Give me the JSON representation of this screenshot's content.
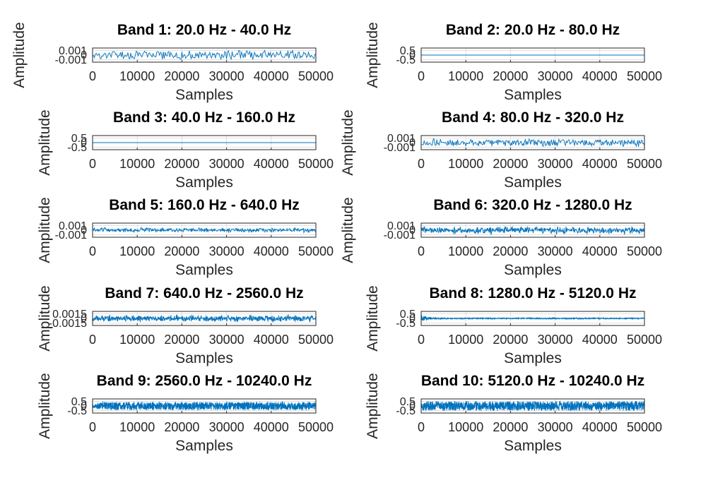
{
  "chart_data": [
    {
      "type": "line",
      "title": "Band 1: 20.0 Hz - 40.0 Hz",
      "xlabel": "Samples",
      "ylabel": "Amplitude",
      "xlim": [
        0,
        50000
      ],
      "xticks": [
        "0",
        "10000",
        "20000",
        "30000",
        "40000",
        "50000"
      ],
      "yticks": [
        "0.001",
        "0",
        "-0.001"
      ],
      "grid": true,
      "signal": {
        "amplitude": 0.7,
        "envelope": "flat",
        "density": 240,
        "variation": 0.35
      }
    },
    {
      "type": "line",
      "title": "Band 2: 20.0 Hz - 80.0 Hz",
      "xlabel": "Samples",
      "ylabel": "Amplitude",
      "xlim": [
        0,
        50000
      ],
      "xticks": [
        "0",
        "10000",
        "20000",
        "30000",
        "40000",
        "50000"
      ],
      "yticks": [
        "0.5",
        "0",
        "-0.5"
      ],
      "grid": true,
      "signal": {
        "amplitude": 0.0,
        "envelope": "flat",
        "density": 10,
        "variation": 0
      }
    },
    {
      "type": "line",
      "title": "Band 3: 40.0 Hz - 160.0 Hz",
      "xlabel": "Samples",
      "ylabel": "Amplitude",
      "xlim": [
        0,
        50000
      ],
      "xticks": [
        "0",
        "10000",
        "20000",
        "30000",
        "40000",
        "50000"
      ],
      "yticks": [
        "0.5",
        "0",
        "-0.5"
      ],
      "grid": true,
      "signal": {
        "amplitude": 0.0,
        "envelope": "flat",
        "density": 10,
        "variation": 0
      }
    },
    {
      "type": "line",
      "title": "Band 4: 80.0 Hz - 320.0 Hz",
      "xlabel": "Samples",
      "ylabel": "Amplitude",
      "xlim": [
        0,
        50000
      ],
      "xticks": [
        "0",
        "10000",
        "20000",
        "30000",
        "40000",
        "50000"
      ],
      "yticks": [
        "0.001",
        "0",
        "-0.001"
      ],
      "grid": true,
      "signal": {
        "amplitude": 0.6,
        "envelope": "flat",
        "density": 300,
        "variation": 0.4
      }
    },
    {
      "type": "line",
      "title": "Band 5: 160.0 Hz - 640.0 Hz",
      "xlabel": "Samples",
      "ylabel": "Amplitude",
      "xlim": [
        0,
        50000
      ],
      "xticks": [
        "0",
        "10000",
        "20000",
        "30000",
        "40000",
        "50000"
      ],
      "yticks": [
        "0.001",
        "0",
        "-0.001"
      ],
      "grid": true,
      "signal": {
        "amplitude": 0.45,
        "envelope": "bursty",
        "density": 520,
        "variation": 0.5
      }
    },
    {
      "type": "line",
      "title": "Band 6: 320.0 Hz - 1280.0 Hz",
      "xlabel": "Samples",
      "ylabel": "Amplitude",
      "xlim": [
        0,
        50000
      ],
      "xticks": [
        "0",
        "10000",
        "20000",
        "30000",
        "40000",
        "50000"
      ],
      "yticks": [
        "0.001",
        "0",
        "-0.001"
      ],
      "grid": true,
      "signal": {
        "amplitude": 0.65,
        "envelope": "bursty",
        "density": 700,
        "variation": 0.5
      }
    },
    {
      "type": "line",
      "title": "Band 7: 640.0 Hz - 2560.0 Hz",
      "xlabel": "Samples",
      "ylabel": "Amplitude",
      "xlim": [
        0,
        50000
      ],
      "xticks": [
        "0",
        "10000",
        "20000",
        "30000",
        "40000",
        "50000"
      ],
      "yticks": [
        "0.0015",
        "0",
        "-0.0015"
      ],
      "grid": true,
      "signal": {
        "amplitude": 0.6,
        "envelope": "bursty",
        "density": 800,
        "variation": 0.4
      }
    },
    {
      "type": "line",
      "title": "Band 8: 1280.0 Hz - 5120.0 Hz",
      "xlabel": "Samples",
      "ylabel": "Amplitude",
      "xlim": [
        0,
        50000
      ],
      "xticks": [
        "0",
        "10000",
        "20000",
        "30000",
        "40000",
        "50000"
      ],
      "yticks": [
        "0.5",
        "0",
        "-0.5"
      ],
      "grid": true,
      "signal": {
        "amplitude": 0.55,
        "envelope": "decay",
        "density": 1200,
        "variation": 0.1
      }
    },
    {
      "type": "line",
      "title": "Band 9: 2560.0 Hz - 10240.0 Hz",
      "xlabel": "Samples",
      "ylabel": "Amplitude",
      "xlim": [
        0,
        50000
      ],
      "xticks": [
        "0",
        "10000",
        "20000",
        "30000",
        "40000",
        "50000"
      ],
      "yticks": [
        "0.5",
        "0",
        "-0.5"
      ],
      "grid": true,
      "signal": {
        "amplitude": 0.6,
        "envelope": "rise",
        "density": 1500,
        "variation": 0.1
      }
    },
    {
      "type": "line",
      "title": "Band 10: 5120.0 Hz - 10240.0 Hz",
      "xlabel": "Samples",
      "ylabel": "Amplitude",
      "xlim": [
        0,
        50000
      ],
      "xticks": [
        "0",
        "10000",
        "20000",
        "30000",
        "40000",
        "50000"
      ],
      "yticks": [
        "0.5",
        "0",
        "-0.5"
      ],
      "grid": true,
      "signal": {
        "amplitude": 0.7,
        "envelope": "flat",
        "density": 1500,
        "variation": 0.1
      }
    }
  ],
  "colors": {
    "line": "#0072BD",
    "grid": "#d9d9d9",
    "axis": "#262626",
    "title": "#000000"
  }
}
